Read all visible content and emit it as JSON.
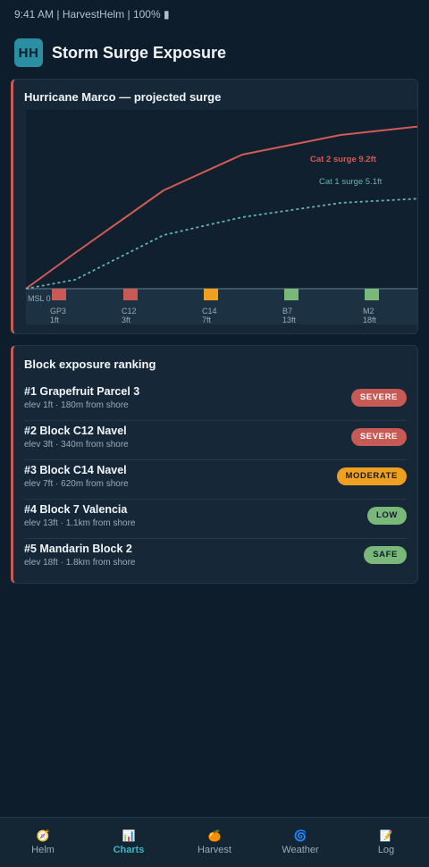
{
  "status_bar": {
    "text": "9:41 AM | HarvestHelm | 100% ▮"
  },
  "header": {
    "logo_text": "HH",
    "title": "Storm Surge Exposure"
  },
  "colors": {
    "severe": "#c85a55",
    "moderate": "#f0a020",
    "low": "#7ab87a",
    "safe": "#7ab87a",
    "cat1": "#5fb5b0",
    "cat2": "#d35a55",
    "accent": "#3ab6c6"
  },
  "chart": {
    "title": "Hurricane Marco — projected surge",
    "baseline_label": "MSL 0",
    "chart_data": {
      "type": "line",
      "title": "Hurricane Marco — projected surge",
      "x_unit": "ft",
      "y_unit": "ft",
      "series": [
        {
          "name": "Cat 2 surge 9.2ft",
          "style": "solid",
          "color": "#d35a55",
          "x": [
            0,
            2.5,
            7,
            11,
            16,
            21
          ],
          "y": [
            0,
            2,
            5.5,
            7.5,
            8.6,
            9.2
          ]
        },
        {
          "name": "Cat 1 surge 5.1ft",
          "style": "dotted",
          "color": "#5fb5b0",
          "x": [
            0,
            2.5,
            7,
            11,
            16,
            21
          ],
          "y": [
            0,
            0.5,
            3,
            4,
            4.8,
            5.1
          ]
        }
      ],
      "blocks": [
        {
          "code": "GP3",
          "elevation": 1,
          "elev_label": "1ft",
          "exposure": "severe"
        },
        {
          "code": "C12",
          "elevation": 3,
          "elev_label": "3ft",
          "exposure": "severe"
        },
        {
          "code": "C14",
          "elevation": 7,
          "elev_label": "7ft",
          "exposure": "moderate"
        },
        {
          "code": "B7",
          "elevation": 13,
          "elev_label": "13ft",
          "exposure": "low"
        },
        {
          "code": "M2",
          "elevation": 18,
          "elev_label": "18ft",
          "exposure": "safe"
        }
      ]
    }
  },
  "ranking": {
    "title": "Block exposure ranking",
    "items": [
      {
        "name": "#1 Grapefruit Parcel 3",
        "detail": "elev 1ft · 180m from shore",
        "badge": "SEVERE",
        "level": "severe"
      },
      {
        "name": "#2 Block C12 Navel",
        "detail": "elev 3ft · 340m from shore",
        "badge": "SEVERE",
        "level": "severe"
      },
      {
        "name": "#3 Block C14 Navel",
        "detail": "elev 7ft · 620m from shore",
        "badge": "MODERATE",
        "level": "moderate"
      },
      {
        "name": "#4 Block 7 Valencia",
        "detail": "elev 13ft · 1.1km from shore",
        "badge": "LOW",
        "level": "low"
      },
      {
        "name": "#5 Mandarin Block 2",
        "detail": "elev 18ft · 1.8km from shore",
        "badge": "SAFE",
        "level": "safe"
      }
    ]
  },
  "nav": {
    "items": [
      {
        "label": "Helm",
        "icon": "🧭",
        "icon_name": "compass-icon",
        "active": false
      },
      {
        "label": "Charts",
        "icon": "📊",
        "icon_name": "bar-chart-icon",
        "active": true
      },
      {
        "label": "Harvest",
        "icon": "🍊",
        "icon_name": "orange-icon",
        "active": false
      },
      {
        "label": "Weather",
        "icon": "🌀",
        "icon_name": "cyclone-icon",
        "active": false
      },
      {
        "label": "Log",
        "icon": "📝",
        "icon_name": "memo-icon",
        "active": false
      }
    ]
  }
}
